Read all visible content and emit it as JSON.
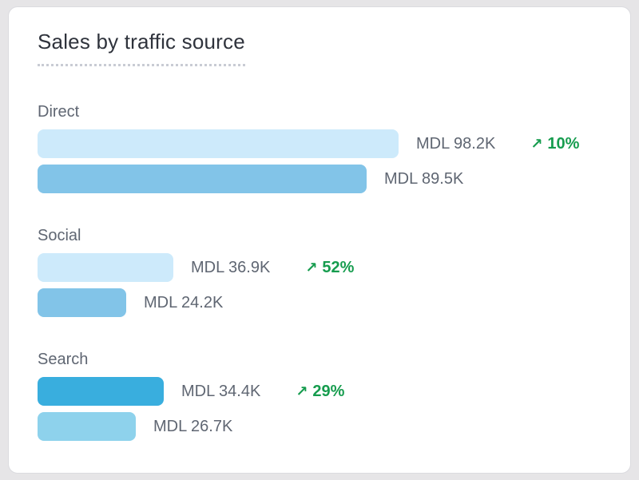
{
  "card": {
    "title": "Sales by traffic source"
  },
  "growth_arrow": "↗",
  "colors": {
    "growth_green": "#169c4e",
    "label_gray": "#5f6672",
    "title_dark": "#2f333c",
    "bar_light_blue": "#cdeafb",
    "bar_medium_blue": "#82c4e8",
    "bar_dark_blue": "#39aede",
    "bar_soft_blue": "#8ed2ec"
  },
  "groups": [
    {
      "label": "Direct",
      "bars": [
        {
          "value": 98.2,
          "value_label": "MDL 98.2K",
          "color": "#cdeafb",
          "growth": "10%"
        },
        {
          "value": 89.5,
          "value_label": "MDL 89.5K",
          "color": "#82c4e8"
        }
      ]
    },
    {
      "label": "Social",
      "bars": [
        {
          "value": 36.9,
          "value_label": "MDL 36.9K",
          "color": "#cdeafb",
          "growth": "52%"
        },
        {
          "value": 24.2,
          "value_label": "MDL 24.2K",
          "color": "#82c4e8"
        }
      ]
    },
    {
      "label": "Search",
      "bars": [
        {
          "value": 34.4,
          "value_label": "MDL 34.4K",
          "color": "#39aede",
          "growth": "29%"
        },
        {
          "value": 26.7,
          "value_label": "MDL 26.7K",
          "color": "#8ed2ec"
        }
      ]
    }
  ],
  "chart_data": {
    "type": "bar",
    "orientation": "horizontal",
    "title": "Sales by traffic source",
    "categories": [
      "Direct",
      "Social",
      "Search"
    ],
    "series": [
      {
        "name": "bar-1",
        "values": [
          98.2,
          36.9,
          34.4
        ],
        "labels": [
          "MDL 98.2K",
          "MDL 36.9K",
          "MDL 34.4K"
        ]
      },
      {
        "name": "bar-2",
        "values": [
          89.5,
          24.2,
          26.7
        ],
        "labels": [
          "MDL 89.5K",
          "MDL 24.2K",
          "MDL 26.7K"
        ]
      }
    ],
    "growth_pct": [
      10,
      52,
      29
    ],
    "currency": "MDL",
    "value_scale": "K",
    "legend": false,
    "axes_visible": false,
    "grid": false
  }
}
